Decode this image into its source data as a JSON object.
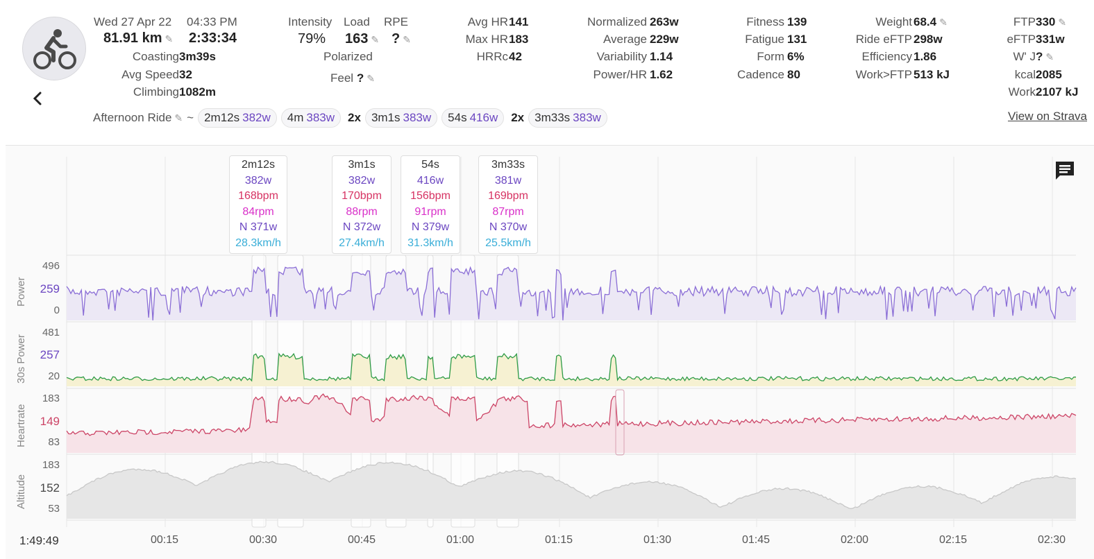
{
  "header": {
    "date": "Wed 27 Apr 22",
    "time": "04:33 PM",
    "distance": "81.91 km",
    "duration": "2:33:34",
    "coasting_label": "Coasting",
    "coasting": "3m39s",
    "avg_speed_label": "Avg Speed",
    "avg_speed": "32",
    "climbing_label": "Climbing",
    "climbing": "1082m",
    "intensity_label": "Intensity",
    "intensity": "79%",
    "load_label": "Load",
    "load": "163",
    "rpe_label": "RPE",
    "rpe": "?",
    "polarized_label": "Polarized",
    "feel_label": "Feel",
    "feel": "?",
    "avg_hr_label": "Avg HR",
    "avg_hr": "141",
    "max_hr_label": "Max HR",
    "max_hr": "183",
    "hrrc_label": "HRRc",
    "hrrc": "42",
    "normalized_label": "Normalized",
    "normalized": "263w",
    "average_label": "Average",
    "average": "229w",
    "variability_label": "Variability",
    "variability": "1.14",
    "power_hr_label": "Power/HR",
    "power_hr": "1.62",
    "fitness_label": "Fitness",
    "fitness": "139",
    "fatigue_label": "Fatigue",
    "fatigue": "131",
    "form_label": "Form",
    "form": "6%",
    "cadence_label": "Cadence",
    "cadence": "80",
    "weight_label": "Weight",
    "weight": "68.4",
    "ride_eftp_label": "Ride eFTP",
    "ride_eftp": "298w",
    "efficiency_label": "Efficiency",
    "efficiency": "1.86",
    "work_ftp_label": "Work>FTP",
    "work_ftp": "513 kJ",
    "ftp_label": "FTP",
    "ftp": "330",
    "eftp_label": "eFTP",
    "eftp": "331w",
    "wprime_label": "W' J",
    "wprime": "?",
    "kcal_label": "kcal",
    "kcal": "2085",
    "work_label": "Work",
    "work": "2107 kJ"
  },
  "intervals_row": {
    "ride_name": "Afternoon Ride",
    "tilde": "~",
    "chips": [
      {
        "rep": "",
        "dur": "2m12s",
        "power": "382w"
      },
      {
        "rep": "",
        "dur": "4m",
        "power": "383w"
      },
      {
        "rep": "2x",
        "dur": "3m1s",
        "power": "383w"
      },
      {
        "rep": "",
        "dur": "54s",
        "power": "416w"
      },
      {
        "rep": "2x",
        "dur": "3m33s",
        "power": "383w"
      }
    ],
    "strava_link": "View on Strava"
  },
  "tooltips": [
    {
      "dur": "2m12s",
      "power": "382w",
      "hr": "168bpm",
      "cad": "84rpm",
      "np": "N 371w",
      "speed": "28.3km/h"
    },
    {
      "dur": "3m1s",
      "power": "382w",
      "hr": "170bpm",
      "cad": "88rpm",
      "np": "N 372w",
      "speed": "27.4km/h"
    },
    {
      "dur": "54s",
      "power": "416w",
      "hr": "156bpm",
      "cad": "91rpm",
      "np": "N 379w",
      "speed": "31.3km/h"
    },
    {
      "dur": "3m33s",
      "power": "381w",
      "hr": "169bpm",
      "cad": "87rpm",
      "np": "N 370w",
      "speed": "25.5km/h"
    }
  ],
  "panels": {
    "power": {
      "title": "Power",
      "ticks": [
        "496",
        "259",
        "0"
      ]
    },
    "power30": {
      "title": "30s Power",
      "ticks": [
        "481",
        "257",
        "20"
      ]
    },
    "heartrate": {
      "title": "Heartrate",
      "ticks": [
        "183",
        "149",
        "83"
      ]
    },
    "altitude": {
      "title": "Altitude",
      "ticks": [
        "183",
        "152",
        "53"
      ]
    }
  },
  "x_axis": {
    "start": "1:49:49",
    "ticks": [
      "00:15",
      "00:30",
      "00:45",
      "01:00",
      "01:15",
      "01:30",
      "01:45",
      "02:00",
      "02:15",
      "02:30"
    ]
  },
  "colors": {
    "power": "#8a6dd6",
    "power_fill": "#ece8f5",
    "hr": "#cc4466",
    "hr_fill": "#f7e3e8",
    "alt": "#c8c8c8",
    "alt_fill": "#e6e6e6",
    "p30": "#2e9b47"
  }
}
